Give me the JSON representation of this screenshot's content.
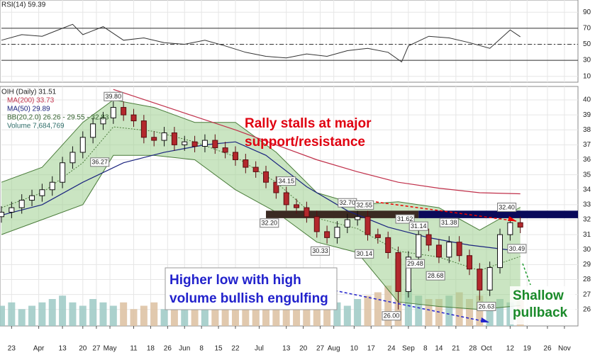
{
  "chart_data": {
    "type": "candlestick",
    "legend": {
      "rsi": "RSI(14) 59.39",
      "symbol": "OIH (Daily) 31.51",
      "ma200": "MA(200) 33.73",
      "ma50": "MA(50) 29.89",
      "bb": "BB(20,2.0) 26.26 - 29.55 - 32.83",
      "volume": "Volume 7,684,769"
    },
    "x": [
      0,
      3,
      6,
      9,
      12,
      15,
      18,
      21,
      24,
      27,
      30,
      33,
      36,
      39,
      42,
      45,
      48,
      51,
      54,
      57,
      60,
      63,
      66,
      69,
      72,
      75,
      78,
      81,
      84,
      87,
      90,
      93,
      96,
      99,
      102,
      105,
      108,
      111,
      114,
      117,
      120,
      123,
      126,
      129,
      132,
      135,
      138,
      141,
      144,
      147,
      150,
      153
    ],
    "open": [
      32.2,
      32.5,
      32.8,
      33.3,
      33.6,
      34.0,
      34.5,
      35.8,
      36.5,
      37.5,
      38.4,
      38.8,
      39.5,
      39.0,
      38.6,
      37.5,
      37.3,
      37.8,
      37.0,
      37.2,
      36.9,
      37.3,
      36.8,
      36.5,
      36.0,
      35.5,
      35.2,
      34.5,
      33.8,
      33.0,
      32.8,
      32.2,
      31.2,
      30.8,
      31.5,
      32.0,
      32.2,
      31.0,
      30.8,
      29.8,
      27.2,
      29.5,
      31.0,
      30.3,
      29.5,
      30.5,
      29.6,
      28.7,
      27.3,
      28.8,
      31.0,
      31.8
    ],
    "high": [
      32.9,
      33.2,
      33.7,
      34.0,
      34.4,
      34.9,
      36.2,
      36.9,
      37.9,
      38.8,
      39.2,
      39.9,
      39.9,
      39.4,
      39.0,
      37.9,
      38.2,
      38.2,
      37.6,
      37.6,
      37.7,
      37.7,
      37.2,
      36.9,
      36.4,
      35.9,
      35.6,
      34.9,
      34.2,
      33.4,
      33.2,
      32.6,
      31.6,
      31.9,
      32.4,
      32.6,
      32.6,
      31.4,
      31.2,
      30.2,
      29.9,
      31.4,
      31.4,
      30.7,
      30.9,
      30.9,
      30.0,
      29.1,
      29.2,
      31.4,
      32.2,
      32.2
    ],
    "low": [
      31.8,
      32.1,
      32.4,
      32.9,
      33.2,
      33.6,
      34.1,
      35.4,
      36.1,
      37.1,
      38.0,
      38.4,
      38.6,
      38.2,
      37.1,
      36.9,
      36.9,
      36.6,
      36.6,
      36.5,
      36.5,
      36.4,
      36.1,
      35.6,
      35.1,
      34.8,
      34.1,
      33.4,
      32.6,
      32.4,
      31.8,
      30.8,
      30.4,
      30.4,
      31.1,
      31.6,
      30.6,
      30.4,
      29.4,
      26.0,
      26.8,
      29.1,
      29.9,
      29.1,
      29.1,
      29.2,
      28.3,
      26.6,
      26.9,
      28.4,
      30.6,
      31.1
    ],
    "close": [
      32.5,
      32.8,
      33.3,
      33.6,
      34.0,
      34.5,
      35.8,
      36.5,
      37.5,
      38.4,
      38.8,
      39.5,
      39.0,
      38.6,
      37.5,
      37.3,
      37.8,
      37.0,
      37.2,
      36.9,
      37.3,
      36.8,
      36.5,
      36.0,
      35.5,
      35.2,
      34.5,
      33.8,
      33.0,
      32.8,
      32.2,
      31.2,
      30.8,
      31.5,
      32.0,
      32.2,
      31.0,
      30.8,
      29.8,
      27.2,
      29.5,
      31.0,
      30.3,
      29.5,
      30.5,
      29.6,
      28.7,
      27.3,
      28.8,
      31.0,
      31.8,
      31.5
    ],
    "up_color": "#ffffff",
    "down_color": "#b3282d",
    "volume": {
      "values": [
        6000000,
        7000000,
        5000000,
        6000000,
        7000000,
        8000000,
        9000000,
        7000000,
        6000000,
        8000000,
        7000000,
        6000000,
        7000000,
        5000000,
        6000000,
        7000000,
        5000000,
        6000000,
        5000000,
        5000000,
        6000000,
        5000000,
        7000000,
        6000000,
        8000000,
        7000000,
        9000000,
        8000000,
        9000000,
        8000000,
        7000000,
        9000000,
        8000000,
        7000000,
        6000000,
        8000000,
        9000000,
        10000000,
        12000000,
        20000000,
        11000000,
        9000000,
        8000000,
        8000000,
        9000000,
        10000000,
        8000000,
        9000000,
        7000000,
        8000000,
        7000000,
        7684769
      ],
      "up_color": "#9cc9c4",
      "down_color": "#dcbfa0"
    },
    "ma200": {
      "x": [
        33,
        45,
        57,
        69,
        81,
        93,
        105,
        117,
        129,
        141,
        153
      ],
      "values": [
        40.7,
        39.8,
        38.9,
        38.0,
        37.0,
        36.0,
        35.2,
        34.5,
        34.1,
        33.8,
        33.73
      ],
      "color": "#c0304a"
    },
    "ma50": {
      "x": [
        0,
        12,
        24,
        36,
        48,
        60,
        69,
        78,
        90,
        102,
        114,
        126,
        138,
        153
      ],
      "values": [
        32.3,
        33.0,
        34.5,
        35.8,
        36.5,
        37.0,
        37.2,
        36.3,
        34.2,
        32.6,
        31.5,
        30.8,
        30.3,
        29.89
      ],
      "color": "#1a237e"
    },
    "bb": {
      "x": [
        0,
        12,
        24,
        33,
        45,
        57,
        69,
        81,
        93,
        105,
        117,
        129,
        141,
        153
      ],
      "upper": [
        34.5,
        35.5,
        38.5,
        40.0,
        39.5,
        38.5,
        38.5,
        36.5,
        33.8,
        33.0,
        33.2,
        32.8,
        31.3,
        32.83
      ],
      "middle": [
        32.8,
        33.8,
        35.8,
        38.2,
        37.9,
        37.2,
        36.2,
        34.5,
        32.1,
        31.4,
        29.9,
        29.5,
        28.6,
        29.55
      ],
      "lower": [
        31.0,
        32.0,
        33.0,
        36.3,
        36.3,
        36.0,
        34.0,
        32.5,
        30.5,
        29.8,
        26.5,
        26.2,
        26.0,
        26.26
      ],
      "color": "#4a7c3a",
      "fill": "#9fcf8f"
    },
    "zones": [
      {
        "x": [
          78,
          123
        ],
        "low": 32.1,
        "high": 32.6,
        "color": "#3b2a22"
      },
      {
        "x": [
          123,
          170
        ],
        "low": 32.1,
        "high": 32.6,
        "color": "#0a0a5a"
      }
    ],
    "peak_labels": [
      {
        "x": 33,
        "value": 39.8,
        "label": "39.80"
      },
      {
        "x": 84,
        "value": 34.15,
        "label": "34.15"
      },
      {
        "x": 102,
        "value": 32.7,
        "label": "32.70"
      },
      {
        "x": 107,
        "value": 32.55,
        "label": "32.55"
      },
      {
        "x": 119,
        "value": 31.62,
        "label": "31.62"
      },
      {
        "x": 123,
        "value": 31.14,
        "label": "31.14"
      },
      {
        "x": 132,
        "value": 31.38,
        "label": "31.38"
      },
      {
        "x": 149,
        "value": 32.4,
        "label": "32.40"
      }
    ],
    "trough_labels": [
      {
        "x": 29,
        "value": 36.27,
        "label": "36.27"
      },
      {
        "x": 79,
        "value": 32.2,
        "label": "32.20"
      },
      {
        "x": 94,
        "value": 30.33,
        "label": "30.33"
      },
      {
        "x": 107,
        "value": 30.14,
        "label": "30.14"
      },
      {
        "x": 122,
        "value": 29.48,
        "label": "29.48"
      },
      {
        "x": 128,
        "value": 28.68,
        "label": "28.68"
      },
      {
        "x": 115,
        "value": 26.0,
        "label": "26.00"
      },
      {
        "x": 143,
        "value": 26.63,
        "label": "26.63"
      },
      {
        "x": 152,
        "value": 30.49,
        "label": "30.49"
      }
    ],
    "annotations": [
      {
        "lines": [
          "Rally stalls at major",
          "support/resistance"
        ]
      },
      {
        "lines": [
          "Higher low with high",
          "volume bullish engulfing"
        ]
      },
      {
        "lines": [
          "Shallow",
          "pullback"
        ]
      }
    ],
    "xlim": [
      0,
      170
    ],
    "xticks": [
      {
        "value": 3,
        "label": "23"
      },
      {
        "value": 11,
        "label": "Apr"
      },
      {
        "value": 18,
        "label": "13"
      },
      {
        "value": 24,
        "label": "20"
      },
      {
        "value": 28,
        "label": "27"
      },
      {
        "value": 32,
        "label": "May"
      },
      {
        "value": 39,
        "label": "11"
      },
      {
        "value": 44,
        "label": "18"
      },
      {
        "value": 49,
        "label": "26"
      },
      {
        "value": 54,
        "label": "Jun"
      },
      {
        "value": 59,
        "label": "8"
      },
      {
        "value": 64,
        "label": "15"
      },
      {
        "value": 69,
        "label": "22"
      },
      {
        "value": 76,
        "label": "Jul"
      },
      {
        "value": 84,
        "label": "13"
      },
      {
        "value": 89,
        "label": "20"
      },
      {
        "value": 94,
        "label": "27"
      },
      {
        "value": 98,
        "label": "Aug"
      },
      {
        "value": 104,
        "label": "10"
      },
      {
        "value": 109,
        "label": "17"
      },
      {
        "value": 115,
        "label": "24"
      },
      {
        "value": 120,
        "label": "Sep"
      },
      {
        "value": 125,
        "label": "8"
      },
      {
        "value": 129,
        "label": "14"
      },
      {
        "value": 134,
        "label": "21"
      },
      {
        "value": 139,
        "label": "28"
      },
      {
        "value": 143,
        "label": "Oct"
      },
      {
        "value": 150,
        "label": "12"
      },
      {
        "value": 155,
        "label": "19"
      },
      {
        "value": 161,
        "label": "26"
      },
      {
        "value": 166,
        "label": "Nov"
      }
    ],
    "ylim": [
      24.9,
      40.9
    ],
    "yticks": [
      26,
      27,
      28,
      29,
      30,
      31,
      32,
      33,
      34,
      35,
      36,
      37,
      38,
      39,
      40
    ],
    "rsi": {
      "x": [
        0,
        6,
        12,
        18,
        21,
        24,
        30,
        36,
        42,
        48,
        54,
        60,
        66,
        72,
        78,
        84,
        90,
        96,
        102,
        108,
        114,
        118,
        120,
        126,
        132,
        138,
        144,
        150,
        153
      ],
      "values": [
        55,
        62,
        60,
        70,
        75,
        62,
        72,
        55,
        58,
        52,
        50,
        55,
        48,
        40,
        35,
        33,
        38,
        35,
        42,
        45,
        40,
        28,
        48,
        60,
        58,
        52,
        45,
        68,
        59.39
      ],
      "color": "#333333",
      "ylim": [
        0,
        100
      ],
      "yticks": [
        10,
        30,
        50,
        70,
        90
      ]
    }
  }
}
